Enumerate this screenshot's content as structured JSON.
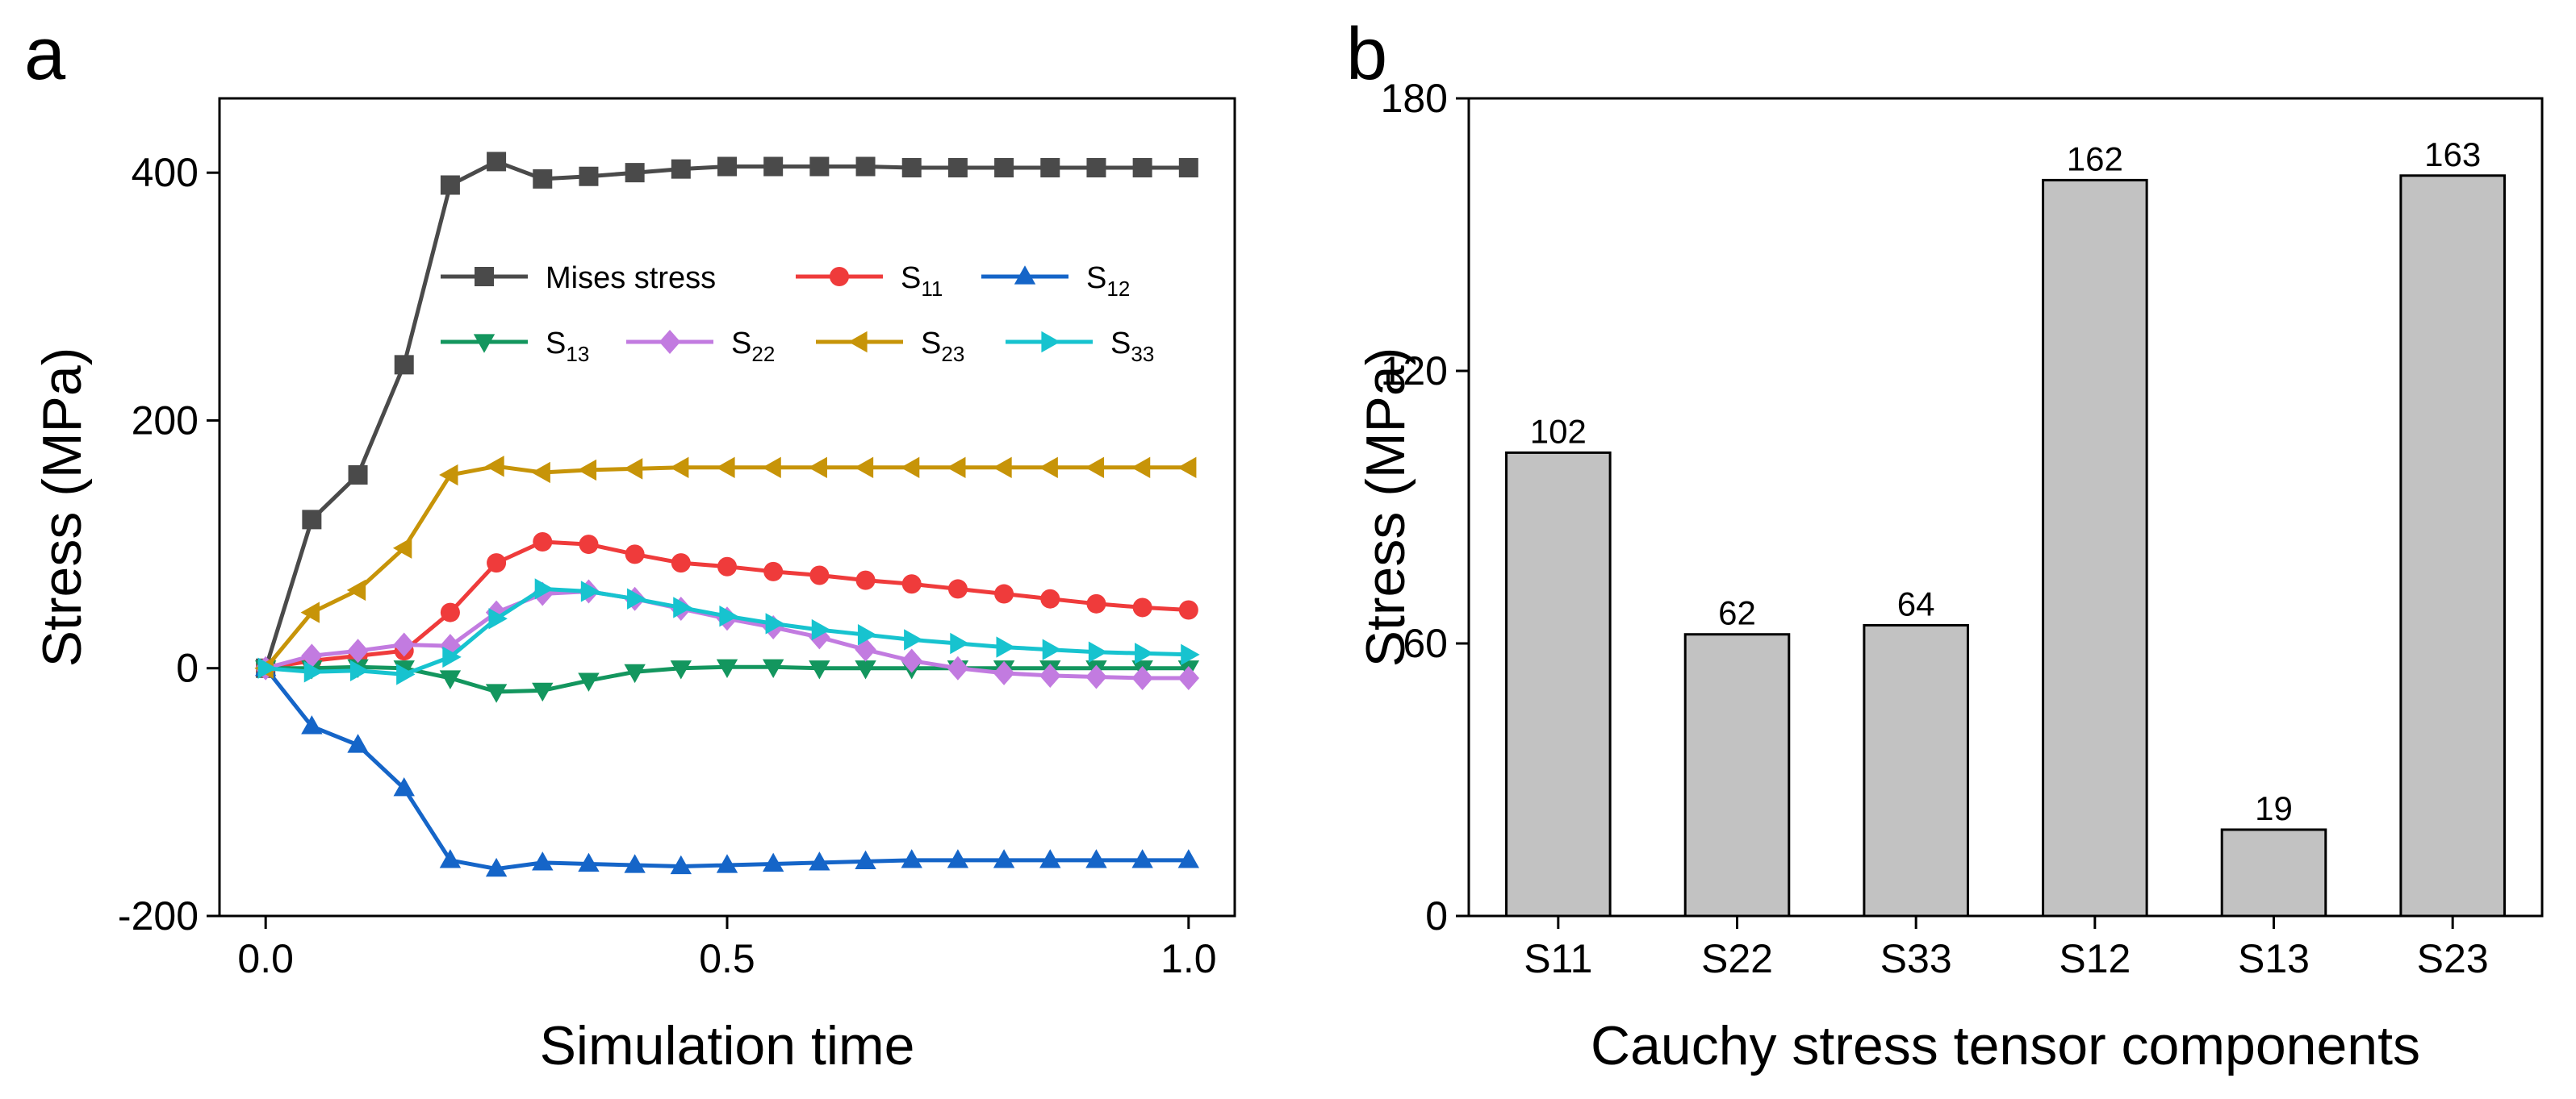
{
  "chart_data": [
    {
      "panel": "a",
      "type": "line",
      "xlabel": "Simulation time",
      "ylabel": "Stress (MPa)",
      "xlim": [
        -0.05,
        1.05
      ],
      "ylim": [
        -200,
        460
      ],
      "xticks": [
        "0.0",
        "0.5",
        "1.0"
      ],
      "xtick_values": [
        0,
        0.5,
        1.0
      ],
      "yticks": [
        "-200",
        "0",
        "200",
        "400"
      ],
      "ytick_values": [
        -200,
        0,
        200,
        400
      ],
      "x": [
        0,
        0.05,
        0.1,
        0.15,
        0.2,
        0.25,
        0.3,
        0.35,
        0.4,
        0.45,
        0.5,
        0.55,
        0.6,
        0.65,
        0.7,
        0.75,
        0.8,
        0.85,
        0.9,
        0.95,
        1.0
      ],
      "series": [
        {
          "name": "Mises stress",
          "sub": "",
          "color": "#4a4a4a",
          "marker": "square",
          "values": [
            0,
            120,
            156,
            245,
            390,
            409,
            395,
            397,
            400,
            403,
            405,
            405,
            405,
            405,
            404,
            404,
            404,
            404,
            404,
            404,
            404
          ]
        },
        {
          "name": "S",
          "sub": "11",
          "color": "#ef3b3b",
          "marker": "circle",
          "values": [
            0,
            6,
            10,
            14,
            45,
            85,
            102,
            100,
            92,
            85,
            82,
            78,
            75,
            71,
            68,
            64,
            60,
            56,
            52,
            49,
            47
          ]
        },
        {
          "name": "S",
          "sub": "12",
          "color": "#1565c8",
          "marker": "triangle-up",
          "values": [
            0,
            -47,
            -62,
            -97,
            -155,
            -162,
            -157,
            -158,
            -159,
            -160,
            -159,
            -158,
            -157,
            -156,
            -155,
            -155,
            -155,
            -155,
            -155,
            -155,
            -155
          ]
        },
        {
          "name": "S",
          "sub": "13",
          "color": "#13965e",
          "marker": "triangle-down",
          "values": [
            0,
            0,
            1,
            0,
            -8,
            -19,
            -18,
            -10,
            -3,
            0,
            1,
            1,
            0,
            0,
            0,
            0,
            0,
            0,
            0,
            0,
            0
          ]
        },
        {
          "name": "S",
          "sub": "22",
          "color": "#c27be0",
          "marker": "diamond",
          "values": [
            0,
            10,
            14,
            19,
            18,
            45,
            60,
            62,
            56,
            48,
            40,
            33,
            25,
            15,
            6,
            0,
            -4,
            -6,
            -7,
            -8,
            -8
          ]
        },
        {
          "name": "S",
          "sub": "23",
          "color": "#c79408",
          "marker": "triangle-left",
          "values": [
            0,
            45,
            63,
            97,
            156,
            163,
            158,
            160,
            161,
            162,
            162,
            162,
            162,
            162,
            162,
            162,
            162,
            162,
            162,
            162,
            162
          ]
        },
        {
          "name": "S",
          "sub": "33",
          "color": "#17c3cf",
          "marker": "triangle-right",
          "values": [
            0,
            -3,
            -2,
            -5,
            9,
            40,
            64,
            62,
            56,
            49,
            42,
            36,
            31,
            27,
            23,
            20,
            17,
            15,
            13,
            12,
            11
          ]
        }
      ]
    },
    {
      "panel": "b",
      "type": "bar",
      "xlabel": "Cauchy stress tensor components",
      "ylabel": "Stress (MPa)",
      "ylim": [
        0,
        180
      ],
      "yticks": [
        "0",
        "60",
        "120",
        "180"
      ],
      "ytick_values": [
        0,
        60,
        120,
        180
      ],
      "categories": [
        "S11",
        "S22",
        "S33",
        "S12",
        "S13",
        "S23"
      ],
      "values": [
        102,
        62,
        64,
        162,
        19,
        163
      ],
      "data_labels": [
        "102",
        "62",
        "64",
        "162",
        "19",
        "163"
      ],
      "bar_color": "#c2c2c2"
    }
  ]
}
